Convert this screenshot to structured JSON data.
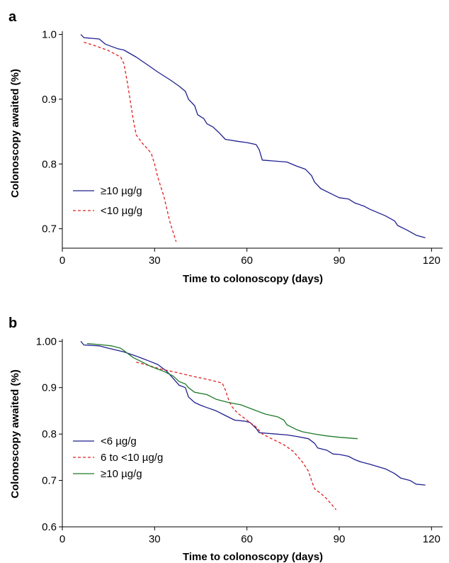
{
  "chart_data": [
    {
      "panel": "a",
      "type": "line",
      "xlabel": "Time to colonoscopy (days)",
      "ylabel": "Colonoscopy awaited (%)",
      "xlim": [
        0,
        122
      ],
      "ylim": [
        0.67,
        1.005
      ],
      "xticks": [
        0,
        30,
        60,
        90,
        120
      ],
      "xtick_labels": [
        "0",
        "30",
        "60",
        "90",
        "120"
      ],
      "yticks": [
        0.7,
        0.8,
        0.9,
        1.0
      ],
      "ytick_labels": [
        "0.7",
        "0.8",
        "0.9",
        "1.0"
      ],
      "grid": false,
      "legend_position": "lower-left",
      "series": [
        {
          "name": "≥10 µg/g",
          "color": "#1f1f8f",
          "dash": "solid",
          "points": [
            [
              6,
              1.0
            ],
            [
              7,
              0.995
            ],
            [
              12,
              0.993
            ],
            [
              14,
              0.985
            ],
            [
              18,
              0.978
            ],
            [
              20,
              0.976
            ],
            [
              24,
              0.965
            ],
            [
              28,
              0.952
            ],
            [
              31,
              0.942
            ],
            [
              35,
              0.93
            ],
            [
              38,
              0.92
            ],
            [
              40,
              0.912
            ],
            [
              41,
              0.9
            ],
            [
              43,
              0.89
            ],
            [
              44,
              0.876
            ],
            [
              46,
              0.87
            ],
            [
              47,
              0.862
            ],
            [
              49,
              0.857
            ],
            [
              51,
              0.848
            ],
            [
              53,
              0.838
            ],
            [
              57,
              0.835
            ],
            [
              60,
              0.833
            ],
            [
              63,
              0.83
            ],
            [
              64,
              0.822
            ],
            [
              65,
              0.806
            ],
            [
              73,
              0.803
            ],
            [
              76,
              0.797
            ],
            [
              79,
              0.792
            ],
            [
              81,
              0.782
            ],
            [
              82,
              0.772
            ],
            [
              84,
              0.762
            ],
            [
              87,
              0.755
            ],
            [
              90,
              0.748
            ],
            [
              93,
              0.746
            ],
            [
              95,
              0.74
            ],
            [
              98,
              0.735
            ],
            [
              100,
              0.73
            ],
            [
              105,
              0.72
            ],
            [
              108,
              0.712
            ],
            [
              109,
              0.705
            ],
            [
              112,
              0.698
            ],
            [
              115,
              0.69
            ],
            [
              118,
              0.686
            ]
          ]
        },
        {
          "name": "<10 µg/g",
          "color": "#e02020",
          "dash": "dashed",
          "points": [
            [
              7,
              0.988
            ],
            [
              11,
              0.982
            ],
            [
              15,
              0.975
            ],
            [
              19,
              0.965
            ],
            [
              20,
              0.955
            ],
            [
              21,
              0.93
            ],
            [
              22,
              0.9
            ],
            [
              23,
              0.87
            ],
            [
              24,
              0.845
            ],
            [
              26,
              0.832
            ],
            [
              28,
              0.822
            ],
            [
              29,
              0.815
            ],
            [
              30,
              0.8
            ],
            [
              31,
              0.78
            ],
            [
              32,
              0.765
            ],
            [
              33,
              0.75
            ],
            [
              34,
              0.73
            ],
            [
              35,
              0.71
            ],
            [
              36,
              0.695
            ],
            [
              37,
              0.68
            ]
          ]
        }
      ]
    },
    {
      "panel": "b",
      "type": "line",
      "xlabel": "Time to colonoscopy (days)",
      "ylabel": "Colonoscopy awaited (%)",
      "xlim": [
        0,
        122
      ],
      "ylim": [
        0.6,
        1.005
      ],
      "xticks": [
        0,
        30,
        60,
        90,
        120
      ],
      "xtick_labels": [
        "0",
        "30",
        "60",
        "90",
        "120"
      ],
      "yticks": [
        0.6,
        0.7,
        0.8,
        0.9,
        1.0
      ],
      "ytick_labels": [
        "0.6",
        "0.7",
        "0.8",
        "0.9",
        "1.00"
      ],
      "grid": false,
      "legend_position": "lower-left",
      "series": [
        {
          "name": "<6 µg/g",
          "color": "#1f1f8f",
          "dash": "solid",
          "points": [
            [
              6,
              1.0
            ],
            [
              7,
              0.992
            ],
            [
              12,
              0.99
            ],
            [
              15,
              0.985
            ],
            [
              20,
              0.977
            ],
            [
              24,
              0.968
            ],
            [
              26,
              0.963
            ],
            [
              28,
              0.958
            ],
            [
              31,
              0.95
            ],
            [
              34,
              0.935
            ],
            [
              36,
              0.92
            ],
            [
              38,
              0.905
            ],
            [
              40,
              0.9
            ],
            [
              41,
              0.88
            ],
            [
              43,
              0.868
            ],
            [
              45,
              0.862
            ],
            [
              47,
              0.857
            ],
            [
              50,
              0.85
            ],
            [
              53,
              0.84
            ],
            [
              56,
              0.83
            ],
            [
              59,
              0.828
            ],
            [
              61,
              0.825
            ],
            [
              63,
              0.812
            ],
            [
              64,
              0.803
            ],
            [
              73,
              0.798
            ],
            [
              76,
              0.795
            ],
            [
              80,
              0.79
            ],
            [
              82,
              0.78
            ],
            [
              83,
              0.77
            ],
            [
              86,
              0.765
            ],
            [
              88,
              0.757
            ],
            [
              90,
              0.756
            ],
            [
              93,
              0.752
            ],
            [
              95,
              0.745
            ],
            [
              97,
              0.74
            ],
            [
              100,
              0.735
            ],
            [
              105,
              0.725
            ],
            [
              108,
              0.715
            ],
            [
              110,
              0.705
            ],
            [
              113,
              0.7
            ],
            [
              115,
              0.692
            ],
            [
              118,
              0.69
            ]
          ]
        },
        {
          "name": "6 to <10 µg/g",
          "color": "#e02020",
          "dash": "dashed",
          "points": [
            [
              24,
              0.955
            ],
            [
              28,
              0.948
            ],
            [
              32,
              0.94
            ],
            [
              37,
              0.933
            ],
            [
              42,
              0.925
            ],
            [
              47,
              0.918
            ],
            [
              52,
              0.91
            ],
            [
              53,
              0.895
            ],
            [
              54,
              0.875
            ],
            [
              55,
              0.86
            ],
            [
              57,
              0.845
            ],
            [
              59,
              0.835
            ],
            [
              61,
              0.825
            ],
            [
              63,
              0.815
            ],
            [
              65,
              0.8
            ],
            [
              68,
              0.79
            ],
            [
              72,
              0.777
            ],
            [
              75,
              0.763
            ],
            [
              78,
              0.74
            ],
            [
              80,
              0.72
            ],
            [
              81,
              0.7
            ],
            [
              82,
              0.682
            ],
            [
              84,
              0.672
            ],
            [
              86,
              0.66
            ],
            [
              89,
              0.637
            ]
          ]
        },
        {
          "name": "≥10 µg/g",
          "color": "#1f7a2a",
          "dash": "solid",
          "points": [
            [
              8,
              0.995
            ],
            [
              12,
              0.993
            ],
            [
              16,
              0.99
            ],
            [
              19,
              0.985
            ],
            [
              21,
              0.975
            ],
            [
              23,
              0.965
            ],
            [
              26,
              0.955
            ],
            [
              29,
              0.945
            ],
            [
              31,
              0.94
            ],
            [
              33,
              0.935
            ],
            [
              36,
              0.925
            ],
            [
              38,
              0.913
            ],
            [
              40,
              0.908
            ],
            [
              41,
              0.9
            ],
            [
              43,
              0.89
            ],
            [
              47,
              0.885
            ],
            [
              50,
              0.875
            ],
            [
              54,
              0.868
            ],
            [
              58,
              0.863
            ],
            [
              62,
              0.853
            ],
            [
              66,
              0.843
            ],
            [
              70,
              0.837
            ],
            [
              72,
              0.83
            ],
            [
              73,
              0.82
            ],
            [
              76,
              0.81
            ],
            [
              78,
              0.805
            ],
            [
              82,
              0.8
            ],
            [
              86,
              0.796
            ],
            [
              90,
              0.793
            ],
            [
              96,
              0.79
            ]
          ]
        }
      ]
    }
  ]
}
